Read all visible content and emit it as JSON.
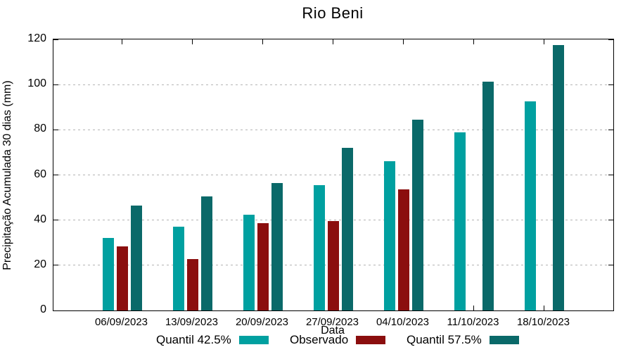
{
  "chart_data": {
    "type": "bar",
    "title": "Rio Beni",
    "xlabel": "Data",
    "ylabel": "Precipitação Acumulada 30 dias (mm)",
    "ylim": [
      0,
      120
    ],
    "yticks": [
      0,
      20,
      40,
      60,
      80,
      100,
      120
    ],
    "grid": "horizontal dashed gray lines at y ticks",
    "legend_position": "bottom, below x-axis label, horizontal row",
    "categories": [
      "06/09/2023",
      "13/09/2023",
      "20/09/2023",
      "27/09/2023",
      "04/10/2023",
      "11/10/2023",
      "18/10/2023"
    ],
    "series": [
      {
        "name": "Quantil 42.5%",
        "color": "#00A0A0",
        "values": [
          32,
          37,
          42.5,
          55.4,
          66,
          79,
          92.5
        ]
      },
      {
        "name": "Observado",
        "color": "#8B0E0E",
        "values": [
          28.5,
          22.7,
          38.8,
          39.6,
          53.5,
          null,
          null
        ]
      },
      {
        "name": "Quantil 57.5%",
        "color": "#0A6969",
        "values": [
          46.3,
          50.6,
          56.3,
          71.9,
          84.5,
          101.3,
          117.5
        ]
      }
    ],
    "axis_color": "#000000",
    "grid_color": "#b4b4b4"
  }
}
